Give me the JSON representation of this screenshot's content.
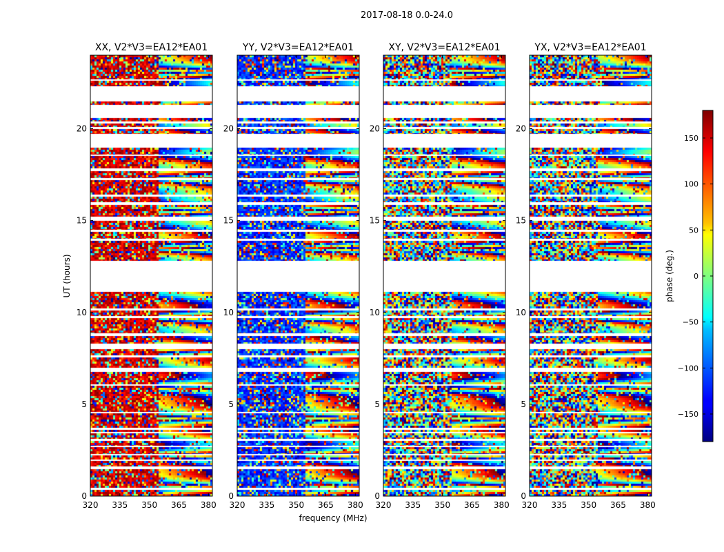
{
  "chart_data": {
    "type": "heatmap",
    "suptitle": "2017-08-18 0.0-24.0",
    "xlabel": "frequency (MHz)",
    "ylabel": "UT (hours)",
    "xlim": [
      320,
      382
    ],
    "ylim": [
      0,
      24
    ],
    "xticks": [
      320,
      335,
      350,
      365,
      380
    ],
    "yticks": [
      0,
      5,
      10,
      15,
      20
    ],
    "panels": [
      {
        "title": "XX, V2*V3=EA12*EA01",
        "coherent_phase_deg": 150
      },
      {
        "title": "YY, V2*V3=EA12*EA01",
        "coherent_phase_deg": -120
      },
      {
        "title": "XY, V2*V3=EA12*EA01",
        "coherent_phase_deg": null
      },
      {
        "title": "YX, V2*V3=EA12*EA01",
        "coherent_phase_deg": null
      }
    ],
    "data_segments_ut_hours": [
      [
        0.0,
        0.35
      ],
      [
        0.45,
        1.45
      ],
      [
        1.6,
        1.9
      ],
      [
        2.0,
        2.2
      ],
      [
        2.3,
        2.65
      ],
      [
        2.75,
        3.0
      ],
      [
        3.1,
        3.4
      ],
      [
        3.5,
        3.62
      ],
      [
        3.7,
        4.5
      ],
      [
        4.6,
        6.0
      ],
      [
        6.1,
        6.75
      ],
      [
        7.0,
        7.55
      ],
      [
        7.65,
        8.0
      ],
      [
        8.3,
        8.7
      ],
      [
        8.85,
        9.7
      ],
      [
        9.8,
        10.1
      ],
      [
        10.2,
        11.1
      ],
      [
        12.8,
        13.9
      ],
      [
        14.0,
        14.4
      ],
      [
        14.5,
        15.0
      ],
      [
        15.2,
        15.85
      ],
      [
        16.0,
        16.3
      ],
      [
        16.4,
        17.2
      ],
      [
        17.3,
        17.7
      ],
      [
        17.85,
        18.5
      ],
      [
        18.6,
        18.95
      ],
      [
        19.7,
        20.0
      ],
      [
        20.1,
        20.3
      ],
      [
        20.4,
        20.6
      ],
      [
        21.3,
        21.5
      ],
      [
        22.3,
        22.6
      ],
      [
        22.7,
        24.0
      ]
    ],
    "colorbar": {
      "label": "phase (deg.)",
      "range": [
        -180,
        180
      ],
      "ticks": [
        -150,
        -100,
        -50,
        0,
        50,
        100,
        150
      ],
      "colormap": "jet"
    }
  }
}
